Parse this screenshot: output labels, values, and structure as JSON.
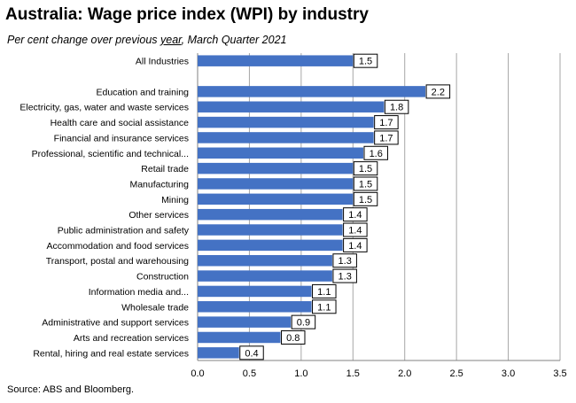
{
  "chart_data": {
    "type": "bar",
    "orientation": "horizontal",
    "title": "Australia:  Wage price index (WPI) by industry",
    "subtitle_parts": [
      "Per cent change over previous ",
      "year",
      ", March Quarter 2021"
    ],
    "source": "Source: ABS and Bloomberg.",
    "categories": [
      "All Industries",
      "",
      "Education and training",
      "Electricity, gas, water and waste services",
      "Health care and social assistance",
      "Financial and insurance services",
      "Professional, scientific and technical...",
      "Retail trade",
      "Manufacturing",
      "Mining",
      "Other services",
      "Public administration and safety",
      "Accommodation and food services",
      "Transport, postal and warehousing",
      "Construction",
      "Information media and...",
      "Wholesale trade",
      "Administrative and support services",
      "Arts and recreation services",
      "Rental, hiring and real estate services"
    ],
    "values": [
      1.5,
      null,
      2.2,
      1.8,
      1.7,
      1.7,
      1.6,
      1.5,
      1.5,
      1.5,
      1.4,
      1.4,
      1.4,
      1.3,
      1.3,
      1.1,
      1.1,
      0.9,
      0.8,
      0.4
    ],
    "xlim": [
      0,
      3.5
    ],
    "xticks": [
      "0.0",
      "0.5",
      "1.0",
      "1.5",
      "2.0",
      "2.5",
      "3.0",
      "3.5"
    ],
    "data_labels": true,
    "grid": "vertical",
    "bar_color": "#4472c4"
  }
}
